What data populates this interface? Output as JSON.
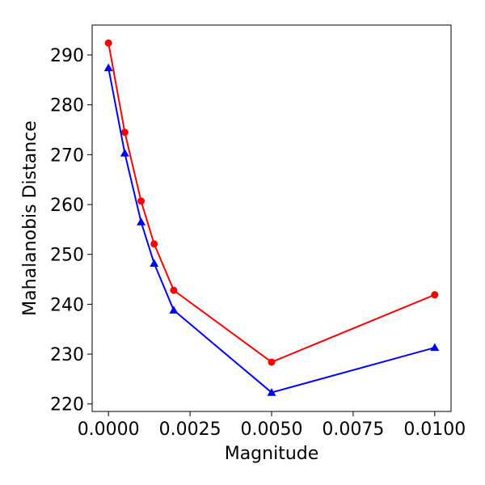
{
  "chart_data": {
    "type": "line",
    "xlabel": "Magnitude",
    "ylabel": "Mahalanobis Distance",
    "xlim": [
      -0.0005,
      0.0105
    ],
    "ylim": [
      218.5,
      296
    ],
    "xticks": [
      0.0,
      0.0025,
      0.005,
      0.0075,
      0.01
    ],
    "xtick_labels": [
      "0.0000",
      "0.0025",
      "0.0050",
      "0.0075",
      "0.0100"
    ],
    "yticks": [
      220,
      230,
      240,
      250,
      260,
      270,
      280,
      290
    ],
    "ytick_labels": [
      "220",
      "230",
      "240",
      "250",
      "260",
      "270",
      "280",
      "290"
    ],
    "grid": false,
    "series": [
      {
        "color": "#ff0000",
        "marker": "circle",
        "x": [
          0.0,
          0.0005,
          0.001,
          0.0014,
          0.002,
          0.005,
          0.01
        ],
        "y": [
          292.4,
          274.5,
          260.7,
          252.1,
          242.8,
          228.4,
          241.9
        ]
      },
      {
        "color": "#0000ff",
        "marker": "triangle",
        "x": [
          0.0,
          0.0005,
          0.001,
          0.0014,
          0.002,
          0.005,
          0.01
        ],
        "y": [
          287.4,
          270.3,
          256.5,
          248.2,
          238.8,
          222.3,
          231.3
        ]
      }
    ]
  }
}
